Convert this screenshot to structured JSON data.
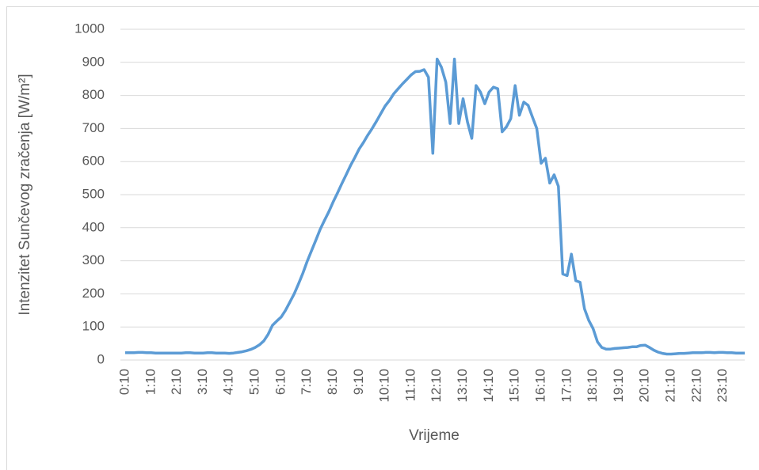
{
  "chart_data": {
    "type": "line",
    "ylabel": "Intenzitet Sunčevog zračenja [W/m²]",
    "xlabel": "Vrijeme",
    "categories": [
      "0:10",
      null,
      null,
      null,
      null,
      null,
      "1:10",
      null,
      null,
      null,
      null,
      null,
      "2:10",
      null,
      null,
      null,
      null,
      null,
      "3:10",
      null,
      null,
      null,
      null,
      null,
      "4:10",
      null,
      null,
      null,
      null,
      null,
      "5:10",
      null,
      null,
      null,
      null,
      null,
      "6:10",
      null,
      null,
      null,
      null,
      null,
      "7:10",
      null,
      null,
      null,
      null,
      null,
      "8:10",
      null,
      null,
      null,
      null,
      null,
      "9:10",
      null,
      null,
      null,
      null,
      null,
      "10:10",
      null,
      null,
      null,
      null,
      null,
      "11:10",
      null,
      null,
      null,
      null,
      null,
      "12:10",
      null,
      null,
      null,
      null,
      null,
      "13:10",
      null,
      null,
      null,
      null,
      null,
      "14:10",
      null,
      null,
      null,
      null,
      null,
      "15:10",
      null,
      null,
      null,
      null,
      null,
      "16:10",
      null,
      null,
      null,
      null,
      null,
      "17:10",
      null,
      null,
      null,
      null,
      null,
      "18:10",
      null,
      null,
      null,
      null,
      null,
      "19:10",
      null,
      null,
      null,
      null,
      null,
      "20:10",
      null,
      null,
      null,
      null,
      null,
      "21:10",
      null,
      null,
      null,
      null,
      null,
      "22:10",
      null,
      null,
      null,
      null,
      null,
      "23:10",
      null,
      null,
      null,
      null,
      null
    ],
    "values": [
      22,
      22,
      22,
      23,
      23,
      22,
      22,
      21,
      21,
      21,
      21,
      21,
      21,
      21,
      22,
      22,
      21,
      21,
      21,
      22,
      22,
      21,
      21,
      21,
      20,
      21,
      23,
      25,
      28,
      32,
      38,
      46,
      58,
      78,
      105,
      118,
      130,
      150,
      175,
      200,
      230,
      262,
      298,
      330,
      362,
      395,
      422,
      448,
      478,
      505,
      533,
      560,
      588,
      612,
      638,
      658,
      680,
      700,
      722,
      745,
      768,
      785,
      805,
      820,
      835,
      848,
      862,
      872,
      873,
      878,
      855,
      625,
      910,
      885,
      840,
      715,
      910,
      715,
      790,
      720,
      670,
      830,
      810,
      775,
      810,
      825,
      820,
      690,
      705,
      730,
      830,
      740,
      780,
      770,
      735,
      700,
      595,
      610,
      535,
      560,
      525,
      260,
      255,
      320,
      240,
      235,
      155,
      120,
      95,
      55,
      38,
      33,
      33,
      35,
      36,
      37,
      38,
      40,
      40,
      44,
      45,
      38,
      30,
      24,
      20,
      18,
      18,
      19,
      20,
      20,
      21,
      22,
      22,
      22,
      23,
      23,
      22,
      23,
      23,
      22,
      22,
      21,
      21,
      21
    ],
    "color": "#5b9bd5",
    "ylim": [
      0,
      1000
    ],
    "yticks": [
      0,
      100,
      200,
      300,
      400,
      500,
      600,
      700,
      800,
      900,
      1000
    ],
    "grid": true
  }
}
